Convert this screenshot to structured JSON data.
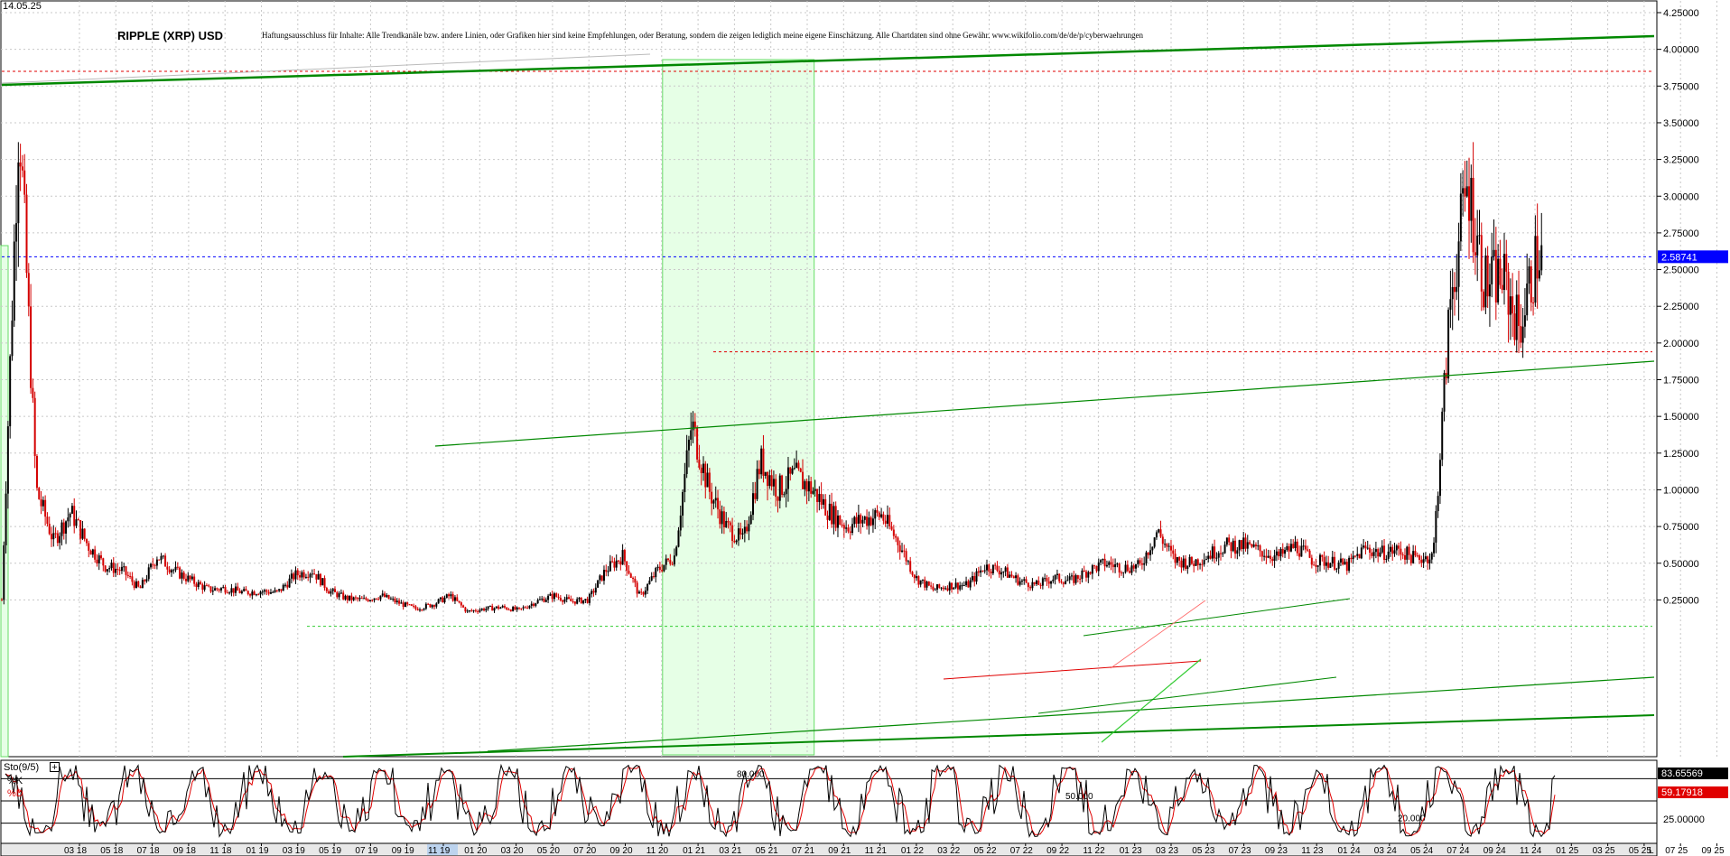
{
  "header": {
    "date": "14.05.25",
    "title": "RIPPLE (XRP) USD",
    "disclaimer": "Haftungsausschluss für Inhalte: Alle Trendkanäle bzw. andere Linien, oder Grafiken hier sind keine Empfehlungen, oder Beratung, sondern die zeigen lediglich meine eigene Einschätzung. Alle Chartdaten sind ohne Gewähr. www.wikifolio.com/de/de/p/cyberwaehrungen"
  },
  "colors": {
    "candle_up": "#000000",
    "candle_down": "#d40000",
    "trend_line": "#008800",
    "trend_line_light": "#33cc33",
    "highlight_zone": "#e6ffe6",
    "highlight_border": "#66dd66",
    "level_red": "#e00000",
    "level_blue": "#0000ff",
    "price_tag_blue": "#0000ff",
    "stoch_k": "#000000",
    "stoch_d": "#e00000",
    "axis_bg": "#e8e8e8"
  },
  "chart_data": [
    {
      "type": "candlestick",
      "title": "RIPPLE (XRP) USD",
      "y_axis_position": "right",
      "ylim": [
        0.0,
        4.3
      ],
      "yticks": [
        "4.25000",
        "4.00000",
        "3.75000",
        "3.50000",
        "3.25000",
        "3.00000",
        "2.75000",
        "2.50000",
        "2.25000",
        "2.00000",
        "1.75000",
        "1.50000",
        "1.25000",
        "1.00000",
        "0.75000",
        "0.50000",
        "0.25000"
      ],
      "ytick_values": [
        4.25,
        4.0,
        3.75,
        3.5,
        3.25,
        3.0,
        2.75,
        2.5,
        2.25,
        2.0,
        1.75,
        1.5,
        1.25,
        1.0,
        0.75,
        0.5,
        0.25
      ],
      "x_range": [
        "2017-12",
        "2025-10"
      ],
      "xticks": [
        "03 18",
        "05 18",
        "07 18",
        "09 18",
        "11 18",
        "01 19",
        "03 19",
        "05 19",
        "07 19",
        "09 19",
        "11 19",
        "01 20",
        "03 20",
        "05 20",
        "07 20",
        "09 20",
        "11 20",
        "01 21",
        "03 21",
        "05 21",
        "07 21",
        "09 21",
        "11 21",
        "01 22",
        "03 22",
        "05 22",
        "07 22",
        "09 22",
        "11 22",
        "01 23",
        "03 23",
        "05 23",
        "07 23",
        "09 23",
        "11 23",
        "01 24",
        "03 24",
        "05 24",
        "07 24",
        "09 24",
        "11 24",
        "01 25",
        "03 25",
        "05 25",
        "07 25",
        "09 25"
      ],
      "grid": true,
      "current_price": {
        "label": "2.58741",
        "value": 2.58741
      },
      "series": [
        {
          "x": [
            "2017-12",
            "2018-01",
            "2018-02",
            "2018-03",
            "2018-04",
            "2018-05",
            "2018-06",
            "2018-07",
            "2018-08",
            "2018-09",
            "2018-10",
            "2018-11",
            "2018-12",
            "2019-01",
            "2019-02",
            "2019-03",
            "2019-04",
            "2019-05",
            "2019-06",
            "2019-07",
            "2019-08",
            "2019-09",
            "2019-10",
            "2019-11",
            "2019-12",
            "2020-01",
            "2020-02",
            "2020-03",
            "2020-04",
            "2020-05",
            "2020-06",
            "2020-07",
            "2020-08",
            "2020-09",
            "2020-10",
            "2020-11",
            "2020-12",
            "2021-01",
            "2021-02",
            "2021-03",
            "2021-04",
            "2021-05",
            "2021-06",
            "2021-07",
            "2021-08",
            "2021-09",
            "2021-10",
            "2021-11",
            "2021-12",
            "2022-01",
            "2022-02",
            "2022-03",
            "2022-04",
            "2022-05",
            "2022-06",
            "2022-07",
            "2022-08",
            "2022-09",
            "2022-10",
            "2022-11",
            "2022-12",
            "2023-01",
            "2023-02",
            "2023-03",
            "2023-04",
            "2023-05",
            "2023-06",
            "2023-07",
            "2023-08",
            "2023-09",
            "2023-10",
            "2023-11",
            "2023-12",
            "2024-01",
            "2024-02",
            "2024-03",
            "2024-04",
            "2024-05",
            "2024-06",
            "2024-07",
            "2024-08",
            "2024-09",
            "2024-10",
            "2024-11",
            "2024-12",
            "2025-01",
            "2025-02",
            "2025-03",
            "2025-04",
            "2025-05"
          ],
          "y": [
            0.25,
            3.6,
            1.0,
            0.65,
            0.85,
            0.62,
            0.48,
            0.45,
            0.32,
            0.55,
            0.45,
            0.38,
            0.32,
            0.33,
            0.3,
            0.31,
            0.3,
            0.42,
            0.45,
            0.31,
            0.26,
            0.25,
            0.28,
            0.23,
            0.19,
            0.22,
            0.28,
            0.17,
            0.19,
            0.2,
            0.18,
            0.24,
            0.28,
            0.24,
            0.25,
            0.45,
            0.55,
            0.27,
            0.45,
            0.55,
            1.45,
            1.0,
            0.75,
            0.65,
            1.2,
            1.0,
            1.1,
            1.0,
            0.85,
            0.75,
            0.8,
            0.83,
            0.64,
            0.4,
            0.32,
            0.35,
            0.35,
            0.48,
            0.45,
            0.38,
            0.35,
            0.4,
            0.38,
            0.45,
            0.5,
            0.47,
            0.48,
            0.72,
            0.52,
            0.5,
            0.56,
            0.62,
            0.62,
            0.58,
            0.54,
            0.62,
            0.52,
            0.51,
            0.48,
            0.6,
            0.57,
            0.59,
            0.53,
            0.55,
            2.3,
            3.1,
            2.4,
            2.45,
            2.1,
            2.58741
          ]
        }
      ],
      "horizontal_levels": [
        {
          "value": 3.85,
          "color": "red",
          "style": "dotted"
        },
        {
          "value": 1.94,
          "color": "red",
          "style": "dotted"
        },
        {
          "value": 2.58741,
          "color": "blue",
          "style": "dotted"
        },
        {
          "value": 0.07,
          "color": "green",
          "style": "dotted"
        }
      ],
      "highlight_zone": {
        "from": "2021-02",
        "to": "2021-11"
      }
    },
    {
      "type": "line",
      "title": "Sto(9/5)",
      "ylim": [
        0,
        100
      ],
      "levels": [
        {
          "value": 80,
          "label": "80.000"
        },
        {
          "value": 50,
          "label": "50.000"
        },
        {
          "value": 20,
          "label": "20.000"
        }
      ],
      "axis_labels": [
        "75.00000",
        "25.00000"
      ],
      "series": [
        {
          "name": "%K",
          "last": 83.65569,
          "last_label": "83.65569"
        },
        {
          "name": "%D",
          "last": 59.17918,
          "last_label": "59.17918"
        }
      ]
    }
  ],
  "bottom_right_label": "L"
}
